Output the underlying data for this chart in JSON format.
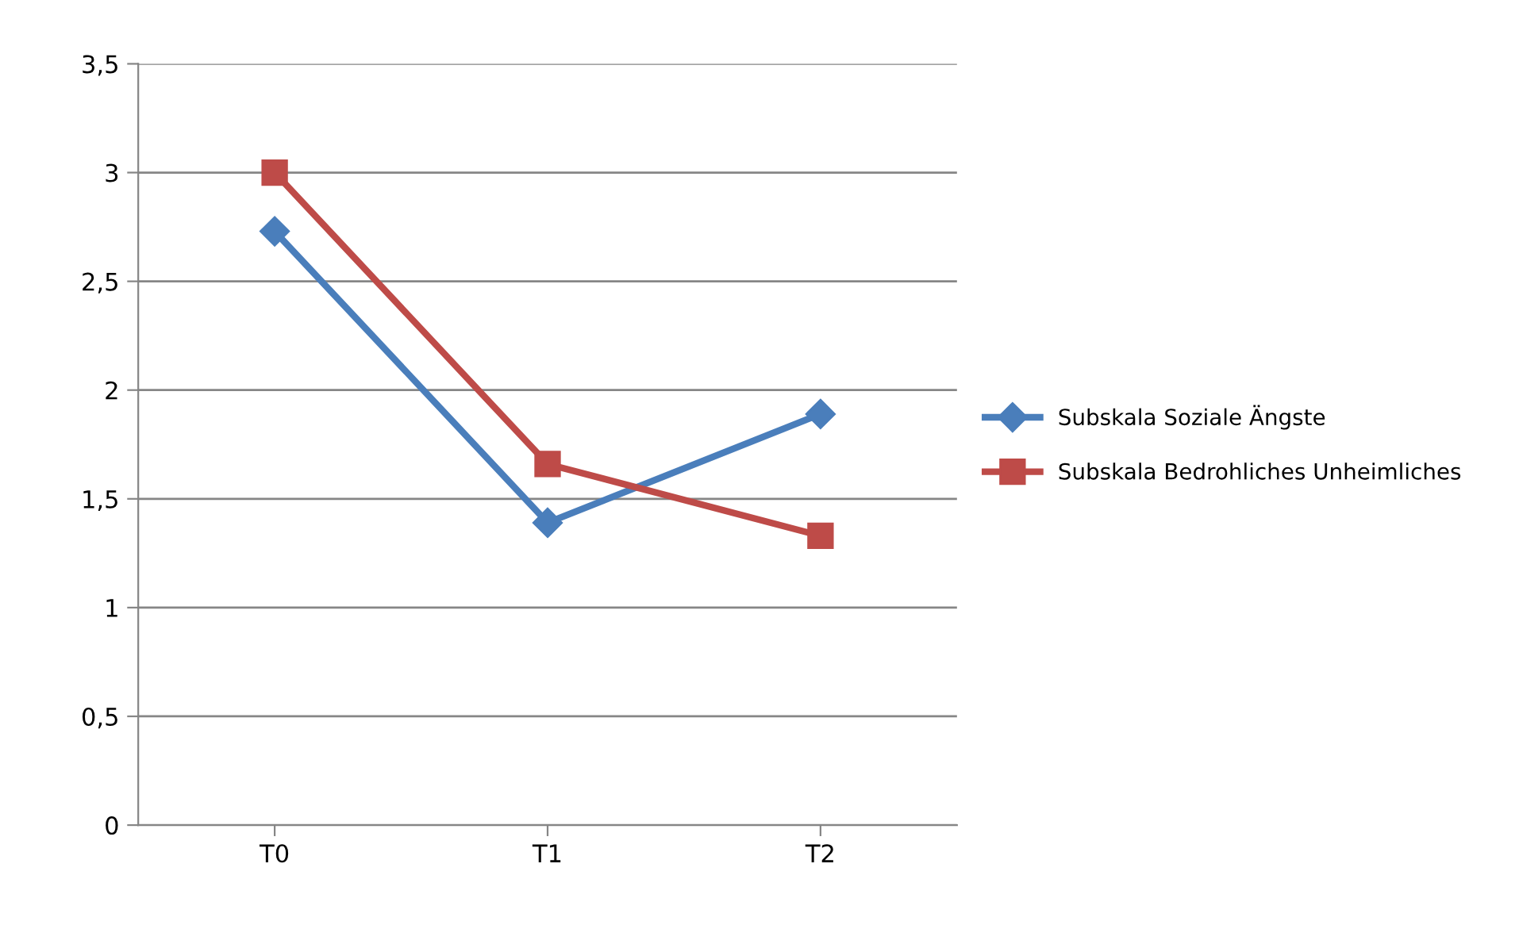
{
  "chart_data": {
    "type": "line",
    "categories": [
      "T0",
      "T1",
      "T2"
    ],
    "series": [
      {
        "name": "Subskala Soziale Ängste",
        "color": "#4a7ebb",
        "values": [
          2.73,
          1.39,
          1.89
        ],
        "marker": "diamond"
      },
      {
        "name": "Subskala Bedrohliches Unheimliches",
        "color": "#be4b48",
        "values": [
          3.0,
          1.66,
          1.33
        ],
        "marker": "square"
      }
    ],
    "ylim": [
      0,
      3.5
    ],
    "yticks": [
      0,
      {
        "value": 0.5,
        "label": "0,5"
      },
      1,
      {
        "value": 1.5,
        "label": "1,5"
      },
      2,
      {
        "value": 2.5,
        "label": "2,5"
      },
      3,
      {
        "value": 3.5,
        "label": "3,5"
      }
    ],
    "grid": "y",
    "legend": "right",
    "line_style": "solid"
  }
}
